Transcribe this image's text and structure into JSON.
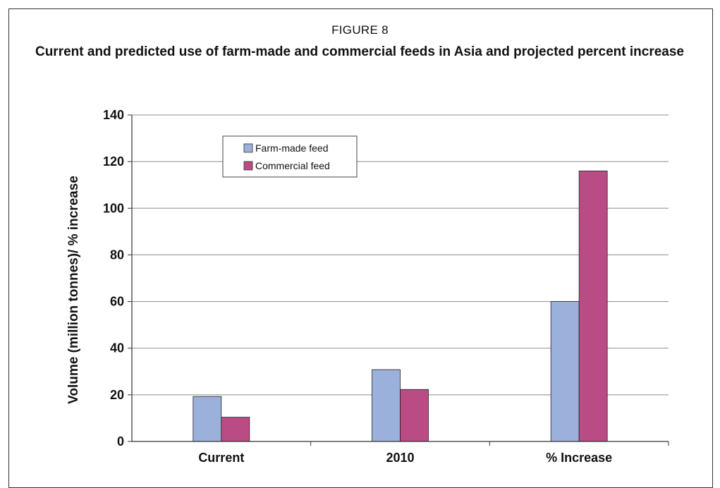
{
  "figure": {
    "label": "FIGURE 8",
    "title": "Current and predicted use of farm-made and commercial feeds in Asia and projected percent increase"
  },
  "chart_data": {
    "type": "bar",
    "categories": [
      "Current",
      "2010",
      "% Increase"
    ],
    "series": [
      {
        "name": "Farm-made feed",
        "values": [
          19.3,
          30.8,
          60
        ],
        "color": "#9bb0db"
      },
      {
        "name": "Commercial feed",
        "values": [
          10.4,
          22.3,
          116
        ],
        "color": "#b94c84"
      }
    ],
    "ylabel": "Volume (million  tonnes)/ % increase",
    "xlabel": "",
    "ylim": [
      0,
      140
    ],
    "yticks": [
      0,
      20,
      40,
      60,
      80,
      100,
      120,
      140
    ],
    "grid": true,
    "legend": "top-left"
  }
}
